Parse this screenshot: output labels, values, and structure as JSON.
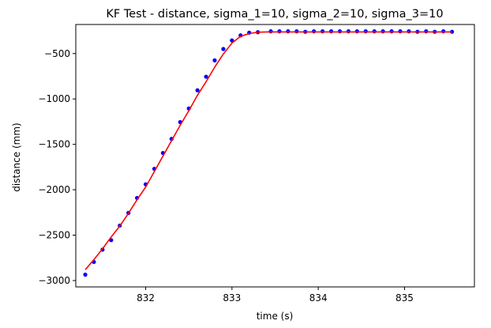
{
  "chart_data": {
    "type": "scatter+line",
    "title": "KF Test - distance, sigma_1=10, sigma_2=10, sigma_3=10",
    "xlabel": "time (s)",
    "ylabel": "distance (mm)",
    "xlim": [
      831.19,
      835.81
    ],
    "ylim": [
      -3070,
      -180
    ],
    "xticks": [
      832,
      833,
      834,
      835
    ],
    "yticks": [
      -3000,
      -2500,
      -2000,
      -1500,
      -1000,
      -500
    ],
    "xtick_labels": [
      "832",
      "833",
      "834",
      "835"
    ],
    "ytick_labels": [
      "−3000",
      "−2500",
      "−2000",
      "−1500",
      "−1000",
      "−500"
    ],
    "grid": false,
    "legend": false,
    "colors": {
      "measurements": "#0000ff",
      "filtered": "#ff0000",
      "axes": "#000000",
      "background": "#ffffff"
    },
    "series": [
      {
        "kind": "scatter",
        "points": [
          [
            831.3,
            -2935
          ],
          [
            831.4,
            -2795
          ],
          [
            831.5,
            -2660
          ],
          [
            831.6,
            -2555
          ],
          [
            831.7,
            -2395
          ],
          [
            831.8,
            -2255
          ],
          [
            831.9,
            -2090
          ],
          [
            832.0,
            -1940
          ],
          [
            832.1,
            -1770
          ],
          [
            832.2,
            -1595
          ],
          [
            832.3,
            -1440
          ],
          [
            832.4,
            -1255
          ],
          [
            832.5,
            -1105
          ],
          [
            832.6,
            -905
          ],
          [
            832.7,
            -755
          ],
          [
            832.8,
            -575
          ],
          [
            832.9,
            -450
          ],
          [
            833.0,
            -355
          ],
          [
            833.1,
            -300
          ],
          [
            833.2,
            -270
          ],
          [
            833.3,
            -265
          ],
          [
            833.45,
            -255
          ],
          [
            833.55,
            -255
          ],
          [
            833.65,
            -255
          ],
          [
            833.75,
            -255
          ],
          [
            833.85,
            -260
          ],
          [
            833.95,
            -255
          ],
          [
            834.05,
            -255
          ],
          [
            834.15,
            -255
          ],
          [
            834.25,
            -255
          ],
          [
            834.35,
            -255
          ],
          [
            834.45,
            -255
          ],
          [
            834.55,
            -255
          ],
          [
            834.65,
            -255
          ],
          [
            834.75,
            -255
          ],
          [
            834.85,
            -255
          ],
          [
            834.95,
            -255
          ],
          [
            835.05,
            -255
          ],
          [
            835.15,
            -260
          ],
          [
            835.25,
            -255
          ],
          [
            835.35,
            -260
          ],
          [
            835.45,
            -255
          ],
          [
            835.55,
            -260
          ]
        ]
      },
      {
        "kind": "line",
        "points": [
          [
            831.3,
            -2880
          ],
          [
            831.4,
            -2770
          ],
          [
            831.5,
            -2650
          ],
          [
            831.6,
            -2520
          ],
          [
            831.7,
            -2400
          ],
          [
            831.8,
            -2260
          ],
          [
            831.9,
            -2110
          ],
          [
            832.0,
            -1970
          ],
          [
            832.1,
            -1800
          ],
          [
            832.2,
            -1630
          ],
          [
            832.3,
            -1460
          ],
          [
            832.4,
            -1290
          ],
          [
            832.5,
            -1130
          ],
          [
            832.6,
            -960
          ],
          [
            832.7,
            -810
          ],
          [
            832.8,
            -650
          ],
          [
            832.9,
            -505
          ],
          [
            833.0,
            -385
          ],
          [
            833.1,
            -310
          ],
          [
            833.2,
            -280
          ],
          [
            833.3,
            -265
          ],
          [
            833.4,
            -262
          ],
          [
            833.6,
            -262
          ],
          [
            833.8,
            -262
          ],
          [
            834.0,
            -262
          ],
          [
            834.2,
            -262
          ],
          [
            834.4,
            -262
          ],
          [
            834.6,
            -262
          ],
          [
            834.8,
            -262
          ],
          [
            835.0,
            -262
          ],
          [
            835.2,
            -262
          ],
          [
            835.4,
            -262
          ],
          [
            835.55,
            -262
          ]
        ]
      }
    ]
  }
}
